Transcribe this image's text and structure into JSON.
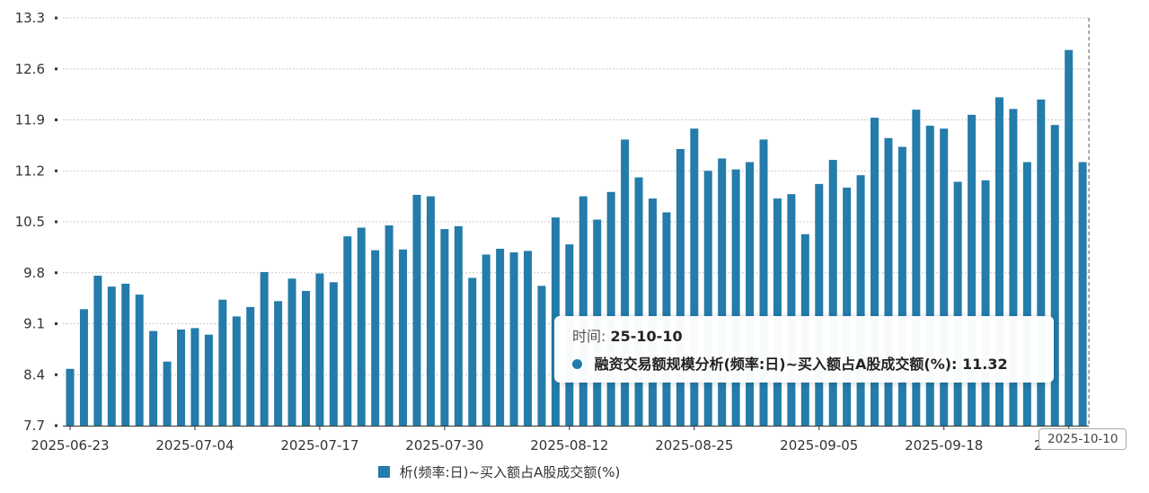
{
  "chart_data": {
    "type": "bar",
    "series": [
      {
        "name": "融资交易额规模分析(频率:日)~买入额占A股成交额(%)",
        "color": "#247caa",
        "values": [
          8.48,
          9.3,
          9.76,
          9.61,
          9.65,
          9.5,
          9.0,
          8.58,
          9.02,
          9.04,
          8.95,
          9.43,
          9.2,
          9.33,
          9.81,
          9.41,
          9.72,
          9.55,
          9.79,
          9.67,
          10.3,
          10.42,
          10.11,
          10.45,
          10.12,
          10.87,
          10.85,
          10.4,
          10.44,
          9.73,
          10.05,
          10.13,
          10.08,
          10.1,
          9.62,
          10.56,
          10.19,
          10.85,
          10.53,
          10.91,
          11.63,
          11.11,
          10.82,
          10.63,
          11.5,
          11.78,
          11.2,
          11.37,
          11.22,
          11.32,
          11.63,
          10.82,
          10.88,
          10.33,
          11.02,
          11.35,
          10.97,
          11.14,
          11.93,
          11.65,
          11.53,
          12.04,
          11.82,
          11.78,
          11.05,
          11.97,
          11.07,
          12.21,
          12.05,
          11.32,
          12.18,
          11.83,
          12.86,
          11.32
        ]
      }
    ],
    "x_tick_labels": [
      "2025-06-23",
      "2025-07-04",
      "2025-07-17",
      "2025-07-30",
      "2025-08-12",
      "2025-08-25",
      "2025-09-05",
      "2025-09-18",
      "2025-10-0"
    ],
    "y_tick_labels": [
      "7.7",
      "8.4",
      "9.1",
      "9.8",
      "10.5",
      "11.2",
      "11.9",
      "12.6",
      "13.3"
    ],
    "ylim": [
      7.7,
      13.3
    ],
    "grid": true,
    "legend_position": "bottom-center",
    "legend_label_visible": "析(频率:日)~买入额占A股成交额(%)",
    "highlighted_index": 73,
    "tooltip": {
      "time_label": "时间:",
      "time_value": "25-10-10",
      "series_label": "融资交易额规模分析(频率:日)~买入额占A股成交额(%):",
      "value": "11.32"
    },
    "crosshair_label": "2025-10-10"
  }
}
